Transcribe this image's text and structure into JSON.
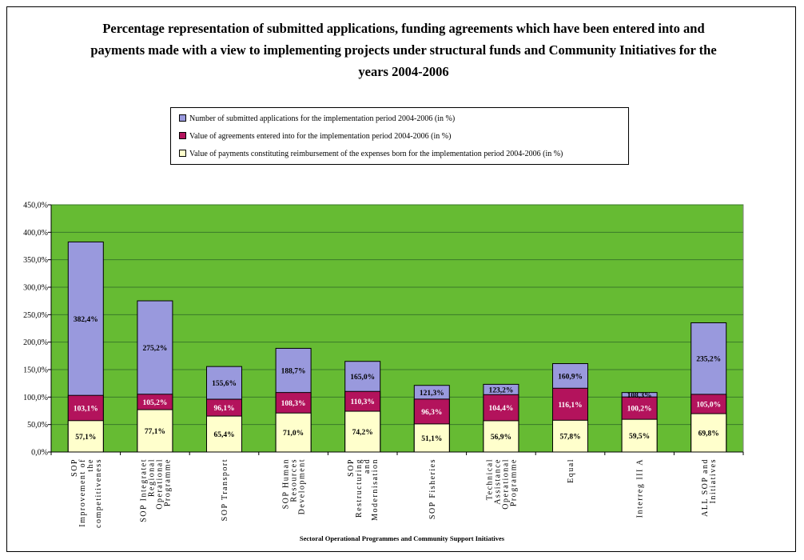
{
  "chart_data": {
    "type": "bar",
    "title": "Percentage representation of submitted applications, funding agreements which have been entered into and payments made with a view to implementing projects under structural funds and Community Initiatives for the years 2004-2006",
    "title_lines": [
      "Percentage representation of submitted applications, funding agreements which have been entered into and",
      "payments made with a view to implementing projects under structural funds and Community Initiatives for the",
      "years 2004-2006"
    ],
    "xlabel": "Sectoral Operational Programmes and Community Support Initiatives",
    "ylabel": "",
    "ylim": [
      0,
      450
    ],
    "yticks": [
      "0,0%",
      "50,0%",
      "100,0%",
      "150,0%",
      "200,0%",
      "250,0%",
      "300,0%",
      "350,0%",
      "400,0%",
      "450,0%"
    ],
    "grid": true,
    "legend_position": "top",
    "plot_background": "#66bb33",
    "categories": [
      "SOP Improvement of the competitiveness",
      "SOP Integratet Regional Operational Programme",
      "SOP Transport",
      "SOP Human Resources Development",
      "SOP Restructuring and Modernisation",
      "SOP Fisheries",
      "Technical Assistance Operational Programme",
      "Equal",
      "Interreg III A",
      "ALL SOP and Initiatives"
    ],
    "category_lines": [
      [
        "SOP",
        "Improvement of",
        "the",
        "competitiveness"
      ],
      [
        "SOP Integratet",
        "Regional",
        "Operational",
        "Programme"
      ],
      [
        "SOP Transport"
      ],
      [
        "SOP Human",
        "Resources",
        "Development"
      ],
      [
        "SOP",
        "Restructuring",
        "and",
        "Modernisation"
      ],
      [
        "SOP Fisheries"
      ],
      [
        "Technical",
        "Assistance",
        "Operational",
        "Programme"
      ],
      [
        "Equal"
      ],
      [
        "Interreg III A"
      ],
      [
        "ALL SOP and",
        "Initiatives"
      ]
    ],
    "series": [
      {
        "name": "Number of submitted applications for the implementation period 2004-2006 (in %)",
        "color": "#9999dd",
        "values": [
          382.4,
          275.2,
          155.6,
          188.7,
          165.0,
          121.3,
          123.2,
          160.9,
          108.3,
          235.2
        ],
        "labels": [
          "382,4%",
          "275,2%",
          "155,6%",
          "188,7%",
          "165,0%",
          "121,3%",
          "123,2%",
          "160,9%",
          "108,3%",
          "235,2%"
        ]
      },
      {
        "name": "Value of agreements entered into for the implementation period 2004-2006 (in %)",
        "color": "#b3135c",
        "values": [
          103.1,
          105.2,
          96.1,
          108.3,
          110.3,
          96.3,
          104.4,
          116.1,
          100.2,
          105.0
        ],
        "labels": [
          "103,1%",
          "105,2%",
          "96,1%",
          "108,3%",
          "110,3%",
          "96,3%",
          "104,4%",
          "116,1%",
          "100,2%",
          "105,0%"
        ]
      },
      {
        "name": "Value of payments constituting reimbursement of the expenses born for the implementation period 2004-2006 (in %)",
        "color": "#ffffcc",
        "values": [
          57.1,
          77.1,
          65.4,
          71.0,
          74.2,
          51.1,
          56.9,
          57.8,
          59.5,
          69.8
        ],
        "labels": [
          "57,1%",
          "77,1%",
          "65,4%",
          "71,0%",
          "74,2%",
          "51,1%",
          "56,9%",
          "57,8%",
          "59,5%",
          "69,8%"
        ]
      }
    ]
  }
}
